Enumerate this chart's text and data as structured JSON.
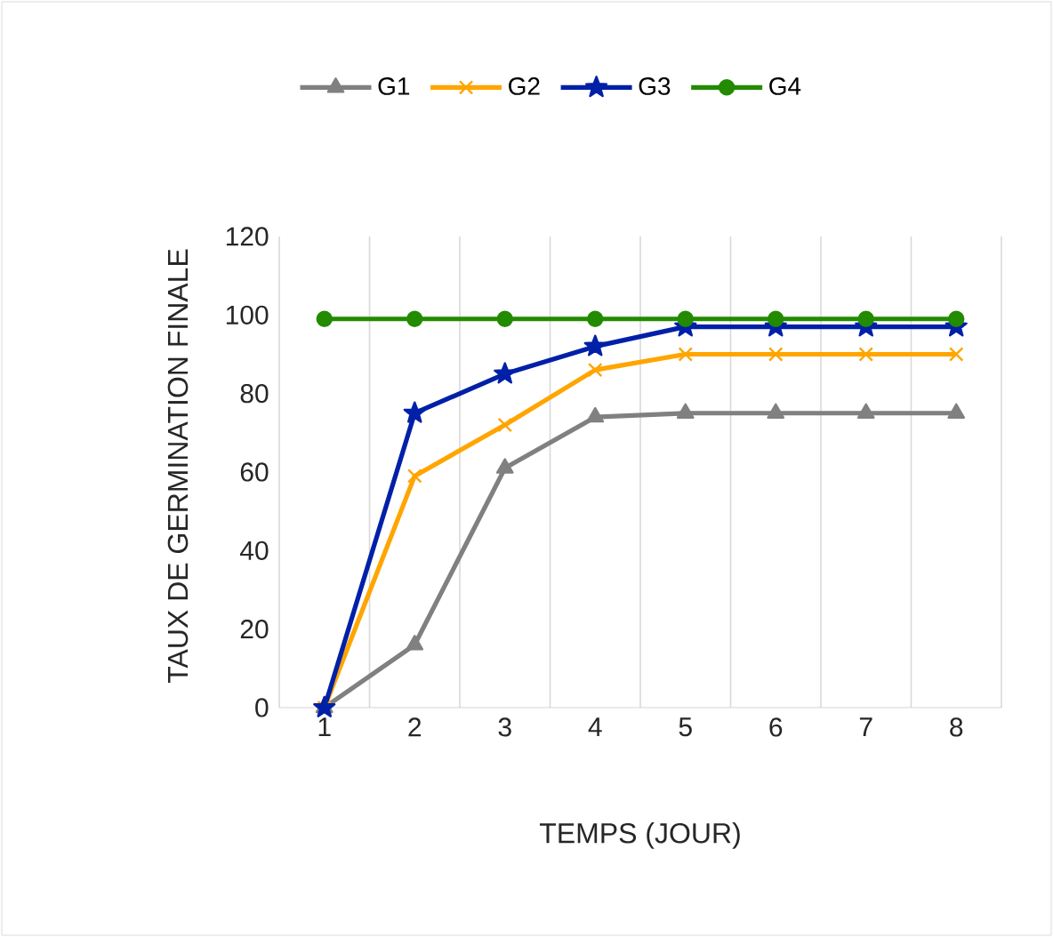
{
  "chart_data": {
    "type": "line",
    "xlabel": "TEMPS (JOUR)",
    "ylabel": "TAUX DE GERMINATION FINALE",
    "categories": [
      "1",
      "2",
      "3",
      "4",
      "5",
      "6",
      "7",
      "8"
    ],
    "series": [
      {
        "name": "G1",
        "color": "#808080",
        "marker": "triangle",
        "values": [
          0,
          16,
          61,
          74,
          75,
          75,
          75,
          75
        ]
      },
      {
        "name": "G2",
        "color": "#ffa500",
        "marker": "cross",
        "values": [
          0,
          59,
          72,
          86,
          90,
          90,
          90,
          90
        ]
      },
      {
        "name": "G3",
        "color": "#0020a8",
        "marker": "star",
        "values": [
          0,
          75,
          85,
          92,
          97,
          97,
          97,
          97
        ]
      },
      {
        "name": "G4",
        "color": "#228b00",
        "marker": "circle",
        "values": [
          99,
          99,
          99,
          99,
          99,
          99,
          99,
          99
        ]
      }
    ],
    "ylim": [
      0,
      120
    ],
    "yticks": [
      0,
      20,
      40,
      60,
      80,
      100,
      120
    ],
    "grid": "x",
    "legend": "top"
  }
}
